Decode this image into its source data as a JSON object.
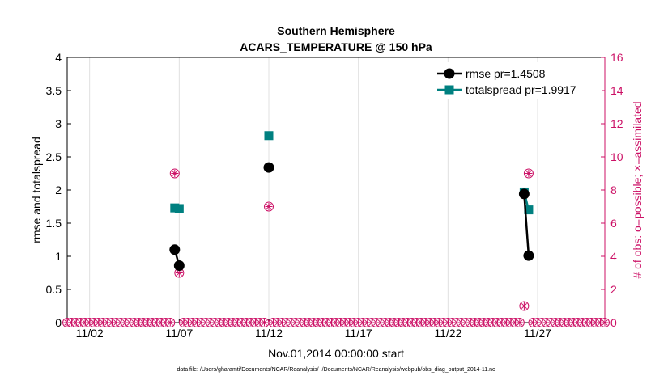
{
  "chart_data": {
    "type": "line",
    "title_line1": "Southern Hemisphere",
    "title_line2": "ACARS_TEMPERATURE @ 150 hPa",
    "xlabel": "Nov.01,2014 00:00:00 start",
    "ylabel": "rmse and totalspread",
    "ylabel_right": "# of obs: o=possible; ×=assimilated",
    "footnote": "data file: /Users/gharamti/Documents/NCAR/Reanalysis/~/Documents/NCAR/Reanalysis/webpub/obs_diag_output_2014-11.nc",
    "xlim": [
      0.75,
      30.75
    ],
    "xticks": [
      2,
      7,
      12,
      17,
      22,
      27
    ],
    "xticklabels": [
      "11/02",
      "11/07",
      "11/12",
      "11/17",
      "11/22",
      "11/27"
    ],
    "ylim": [
      0,
      4
    ],
    "yticks": [
      0,
      0.5,
      1,
      1.5,
      2,
      2.5,
      3,
      3.5,
      4
    ],
    "yticklabels": [
      "0",
      "0.5",
      "1",
      "1.5",
      "2",
      "2.5",
      "3",
      "3.5",
      "4"
    ],
    "ylim_right": [
      0,
      16
    ],
    "yticks_right": [
      0,
      2,
      4,
      6,
      8,
      10,
      12,
      14,
      16
    ],
    "yticklabels_right": [
      "0",
      "2",
      "4",
      "6",
      "8",
      "10",
      "12",
      "14",
      "16"
    ],
    "colors": {
      "rmse": "#000000",
      "spread": "#008080",
      "obs": "#cc1166",
      "grid": "#e0e0e0"
    },
    "series": [
      {
        "name": "rmse",
        "legend": "rmse pr=1.4508",
        "segments": [
          [
            [
              6.75,
              1.1
            ],
            [
              7.0,
              0.86
            ]
          ],
          [
            [
              12.0,
              2.34
            ]
          ],
          [
            [
              26.25,
              1.94
            ],
            [
              26.5,
              1.01
            ]
          ]
        ]
      },
      {
        "name": "totalspread",
        "legend": "totalspread pr=1.9917",
        "segments": [
          [
            [
              6.75,
              1.73
            ],
            [
              7.0,
              1.72
            ]
          ],
          [
            [
              12.0,
              2.82
            ]
          ],
          [
            [
              26.25,
              1.97
            ],
            [
              26.5,
              1.7
            ]
          ]
        ]
      }
    ],
    "obs_possible": {
      "x_start": 0.75,
      "x_step": 0.25,
      "count": 121,
      "nonzero": [
        [
          6.75,
          9
        ],
        [
          7.0,
          3
        ],
        [
          12.0,
          7
        ],
        [
          26.25,
          1
        ],
        [
          26.5,
          9
        ]
      ]
    }
  }
}
